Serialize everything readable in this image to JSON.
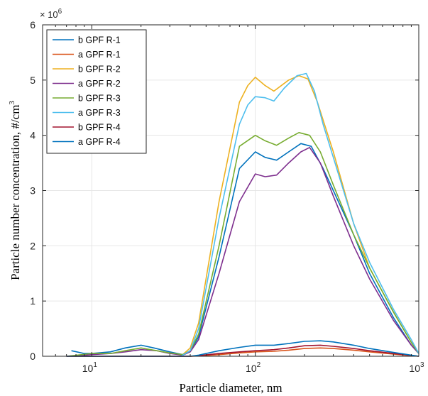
{
  "chart_data": {
    "type": "line",
    "title": "",
    "xlabel": "Particle diameter, nm",
    "ylabel": "Particle number concentration, #/cm",
    "ylabel_superscript": "3",
    "x_scale": "log",
    "xlim": [
      5,
      1000
    ],
    "ylim": [
      0,
      6000000
    ],
    "y_exponent_base": "× 10",
    "y_exponent_power": "6",
    "x_ticks": [
      {
        "value": 10,
        "base": "10",
        "power": "1"
      },
      {
        "value": 100,
        "base": "10",
        "power": "2"
      },
      {
        "value": 1000,
        "base": "10",
        "power": "3"
      }
    ],
    "y_ticks": [
      {
        "value": 0,
        "label": "0"
      },
      {
        "value": 1000000,
        "label": "1"
      },
      {
        "value": 2000000,
        "label": "2"
      },
      {
        "value": 3000000,
        "label": "3"
      },
      {
        "value": 4000000,
        "label": "4"
      },
      {
        "value": 5000000,
        "label": "5"
      },
      {
        "value": 6000000,
        "label": "6"
      }
    ],
    "grid": true,
    "legend_position": "top-left",
    "series": [
      {
        "name": "b GPF R-1",
        "color": "#0072BD",
        "x": [
          7.5,
          9,
          10,
          13,
          16,
          20,
          24,
          30,
          36,
          40,
          45,
          60,
          80,
          100,
          115,
          135,
          160,
          190,
          220,
          260,
          300,
          400,
          500,
          700,
          900,
          1000
        ],
        "y": [
          100000,
          50000,
          50000,
          80000,
          150000,
          200000,
          150000,
          80000,
          30000,
          100000,
          350000,
          1800000,
          3400000,
          3700000,
          3600000,
          3550000,
          3700000,
          3850000,
          3800000,
          3400000,
          3000000,
          2200000,
          1500000,
          700000,
          200000,
          50000
        ]
      },
      {
        "name": "a GPF R-1",
        "color": "#D95319",
        "x": [
          7,
          10,
          20,
          35,
          40,
          45,
          60,
          80,
          100,
          130,
          160,
          200,
          250,
          300,
          400,
          500,
          700,
          900,
          1000
        ],
        "y": [
          0,
          0,
          0,
          0,
          0,
          5000,
          30000,
          60000,
          80000,
          90000,
          110000,
          140000,
          150000,
          140000,
          110000,
          80000,
          40000,
          10000,
          0
        ]
      },
      {
        "name": "b GPF R-2",
        "color": "#EDB120",
        "x": [
          35,
          40,
          45,
          60,
          80,
          90,
          100,
          115,
          130,
          160,
          185,
          210,
          240,
          300,
          400,
          500,
          700,
          900,
          1000
        ],
        "y": [
          0,
          150000,
          600000,
          2800000,
          4600000,
          4900000,
          5050000,
          4900000,
          4800000,
          5000000,
          5080000,
          5020000,
          4600000,
          3700000,
          2400000,
          1600000,
          800000,
          250000,
          50000
        ]
      },
      {
        "name": "a GPF R-2",
        "color": "#7E2F8E",
        "x": [
          7,
          10,
          13,
          16,
          20,
          25,
          30,
          36,
          40,
          45,
          60,
          80,
          100,
          115,
          135,
          160,
          190,
          215,
          250,
          300,
          400,
          500,
          700,
          900,
          1000
        ],
        "y": [
          0,
          30000,
          50000,
          80000,
          120000,
          100000,
          50000,
          20000,
          80000,
          300000,
          1500000,
          2800000,
          3300000,
          3250000,
          3280000,
          3500000,
          3700000,
          3780000,
          3500000,
          2900000,
          2000000,
          1400000,
          650000,
          200000,
          50000
        ]
      },
      {
        "name": "b GPF R-3",
        "color": "#77AC30",
        "x": [
          7,
          10,
          13,
          16,
          20,
          25,
          30,
          36,
          40,
          45,
          60,
          80,
          100,
          115,
          135,
          160,
          185,
          215,
          250,
          300,
          400,
          500,
          700,
          900,
          1000
        ],
        "y": [
          0,
          50000,
          50000,
          100000,
          150000,
          100000,
          60000,
          30000,
          100000,
          400000,
          2000000,
          3800000,
          4000000,
          3900000,
          3820000,
          3950000,
          4050000,
          4000000,
          3700000,
          3100000,
          2200000,
          1600000,
          800000,
          250000,
          50000
        ]
      },
      {
        "name": "a GPF R-3",
        "color": "#4DBEEE",
        "x": [
          35,
          40,
          45,
          60,
          80,
          90,
          100,
          115,
          130,
          150,
          180,
          205,
          230,
          260,
          300,
          400,
          500,
          700,
          900,
          1000
        ],
        "y": [
          0,
          100000,
          500000,
          2500000,
          4200000,
          4550000,
          4700000,
          4680000,
          4620000,
          4850000,
          5080000,
          5120000,
          4800000,
          4200000,
          3600000,
          2400000,
          1700000,
          850000,
          300000,
          50000
        ]
      },
      {
        "name": "b GPF R-4",
        "color": "#A2142F",
        "x": [
          7,
          10,
          20,
          35,
          40,
          45,
          60,
          80,
          100,
          130,
          160,
          200,
          250,
          300,
          400,
          500,
          700,
          900,
          1000
        ],
        "y": [
          0,
          0,
          0,
          0,
          0,
          10000,
          50000,
          80000,
          100000,
          120000,
          150000,
          190000,
          200000,
          180000,
          140000,
          100000,
          50000,
          15000,
          0
        ]
      },
      {
        "name": "a GPF R-4",
        "color": "#0072BD",
        "x": [
          7,
          10,
          20,
          35,
          40,
          45,
          60,
          80,
          100,
          130,
          160,
          200,
          250,
          300,
          400,
          500,
          700,
          900,
          1000
        ],
        "y": [
          0,
          0,
          0,
          0,
          0,
          20000,
          100000,
          160000,
          200000,
          200000,
          230000,
          270000,
          280000,
          260000,
          200000,
          140000,
          70000,
          20000,
          0
        ]
      }
    ]
  }
}
